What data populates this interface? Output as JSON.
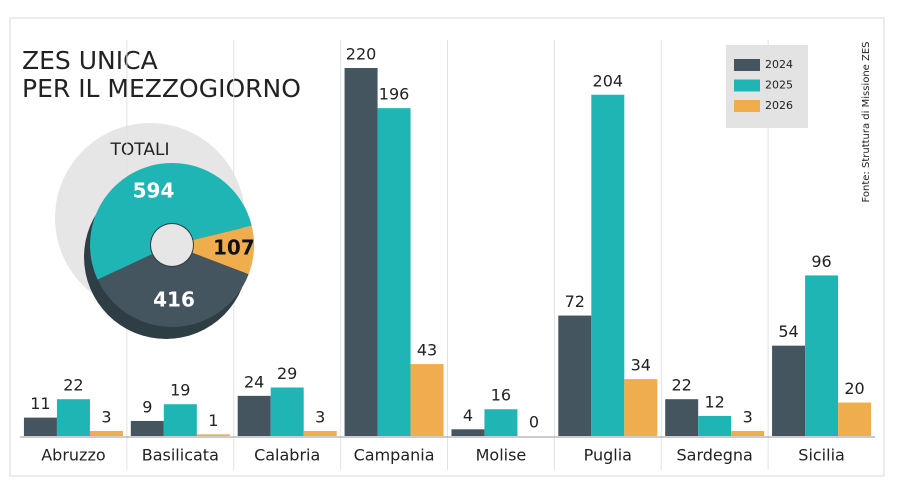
{
  "chart_data": [
    {
      "type": "bar",
      "title": [
        "ZES UNICA",
        "PER IL MEZZOGIORNO"
      ],
      "source": "Fonte: Struttura di Missione ZES",
      "categories": [
        "Abruzzo",
        "Basilicata",
        "Calabria",
        "Campania",
        "Molise",
        "Puglia",
        "Sardegna",
        "Sicilia"
      ],
      "series": [
        {
          "name": "2024",
          "color": "#44555f",
          "values": [
            11,
            9,
            24,
            220,
            4,
            72,
            22,
            54
          ]
        },
        {
          "name": "2025",
          "color": "#1fb5b5",
          "values": [
            22,
            19,
            29,
            196,
            16,
            204,
            12,
            96
          ]
        },
        {
          "name": "2026",
          "color": "#f0ad4e",
          "values": [
            3,
            1,
            3,
            43,
            0,
            34,
            3,
            20
          ]
        }
      ]
    },
    {
      "type": "pie",
      "title": "TOTALI",
      "values": [
        594,
        107,
        416
      ],
      "colors": [
        "#1fb5b5",
        "#f0ad4e",
        "#44555f"
      ]
    }
  ]
}
